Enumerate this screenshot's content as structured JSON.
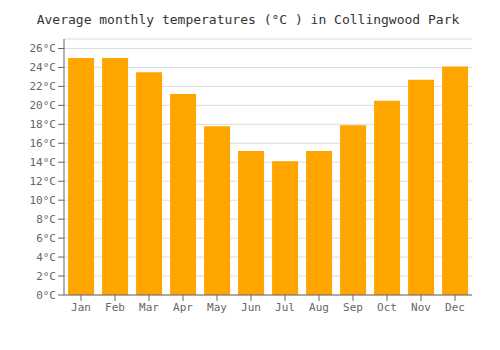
{
  "chart_data": {
    "type": "bar",
    "title": "Average monthly temperatures (°C ) in Collingwood Park",
    "categories": [
      "Jan",
      "Feb",
      "Mar",
      "Apr",
      "May",
      "Jun",
      "Jul",
      "Aug",
      "Sep",
      "Oct",
      "Nov",
      "Dec"
    ],
    "values": [
      25.0,
      25.0,
      23.5,
      21.2,
      17.8,
      15.2,
      14.1,
      15.2,
      17.9,
      20.5,
      22.7,
      24.1
    ],
    "color": "#FFA500",
    "ylim": [
      0,
      27
    ],
    "yticks": [
      {
        "value": 0,
        "label": "0°C"
      },
      {
        "value": 2,
        "label": "2°C"
      },
      {
        "value": 4,
        "label": "4°C"
      },
      {
        "value": 6,
        "label": "6°C"
      },
      {
        "value": 8,
        "label": "8°C"
      },
      {
        "value": 10,
        "label": "10°C"
      },
      {
        "value": 12,
        "label": "12°C"
      },
      {
        "value": 14,
        "label": "14°C"
      },
      {
        "value": 16,
        "label": "16°C"
      },
      {
        "value": 18,
        "label": "18°C"
      },
      {
        "value": 20,
        "label": "20°C"
      },
      {
        "value": 22,
        "label": "22°C"
      },
      {
        "value": 24,
        "label": "24°C"
      },
      {
        "value": 26,
        "label": "26°C"
      }
    ],
    "grid": true
  }
}
